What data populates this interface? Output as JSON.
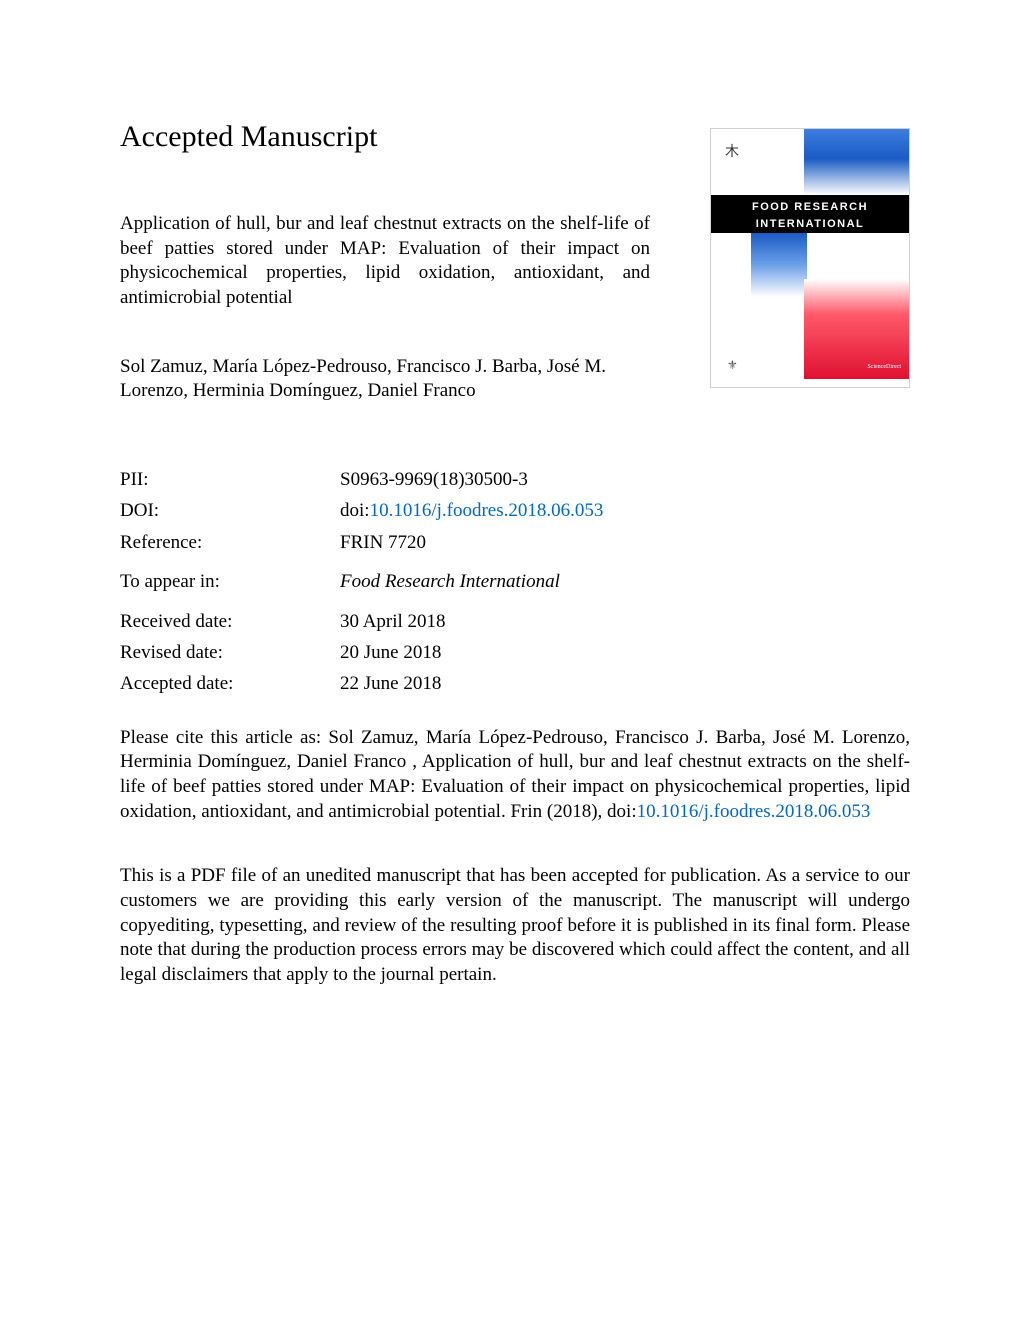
{
  "section_title": "Accepted Manuscript",
  "article_title": "Application of hull, bur and leaf chestnut extracts on the shelf-life of beef patties stored under MAP: Evaluation of their impact on physicochemical properties, lipid oxidation, antioxidant, and antimicrobial potential",
  "authors": "Sol Zamuz, María López-Pedrouso, Francisco J. Barba, José M. Lorenzo, Herminia Domínguez, Daniel Franco",
  "journal_cover": {
    "title_line1": "FOOD RESEARCH",
    "title_line2": "INTERNATIONAL",
    "publisher_glyph": "⚜",
    "red_text": "ScienceDirect"
  },
  "meta": {
    "pii": {
      "label": "PII:",
      "value": "S0963-9969(18)30500-3"
    },
    "doi": {
      "label": "DOI:",
      "prefix": "doi:",
      "link": "10.1016/j.foodres.2018.06.053"
    },
    "reference": {
      "label": "Reference:",
      "value": "FRIN 7720"
    },
    "appear": {
      "label": "To appear in:",
      "value": "Food Research International"
    },
    "received": {
      "label": "Received date:",
      "value": "30 April 2018"
    },
    "revised": {
      "label": "Revised date:",
      "value": "20 June 2018"
    },
    "accepted": {
      "label": "Accepted date:",
      "value": "22 June 2018"
    }
  },
  "citation": {
    "prefix": "Please cite this article as: Sol Zamuz, María López-Pedrouso, Francisco J. Barba, José M. Lorenzo, Herminia Domínguez, Daniel Franco , Application of hull, bur and leaf chestnut extracts on the shelf-life of beef patties stored under MAP: Evaluation of their impact on physicochemical properties, lipid oxidation, antioxidant, and antimicrobial potential. Frin (2018), doi:",
    "link": "10.1016/j.foodres.2018.06.053"
  },
  "disclaimer": "This is a PDF file of an unedited manuscript that has been accepted for publication. As a service to our customers we are providing this early version of the manuscript. The manuscript will undergo copyediting, typesetting, and review of the resulting proof before it is published in its final form. Please note that during the production process errors may be discovered which could affect the content, and all legal disclaimers that apply to the journal pertain.",
  "colors": {
    "text": "#000000",
    "link": "#0066cc",
    "background": "#ffffff",
    "cover_blue_start": "#3d7ee0",
    "cover_blue_end": "#1a5bc4",
    "cover_red_start": "#ff5a6a",
    "cover_red_end": "#e01030",
    "cover_band": "#000000"
  },
  "typography": {
    "title_fontsize": 30,
    "body_fontsize": 19,
    "cover_title_fontsize": 11,
    "font_family": "Times New Roman"
  }
}
